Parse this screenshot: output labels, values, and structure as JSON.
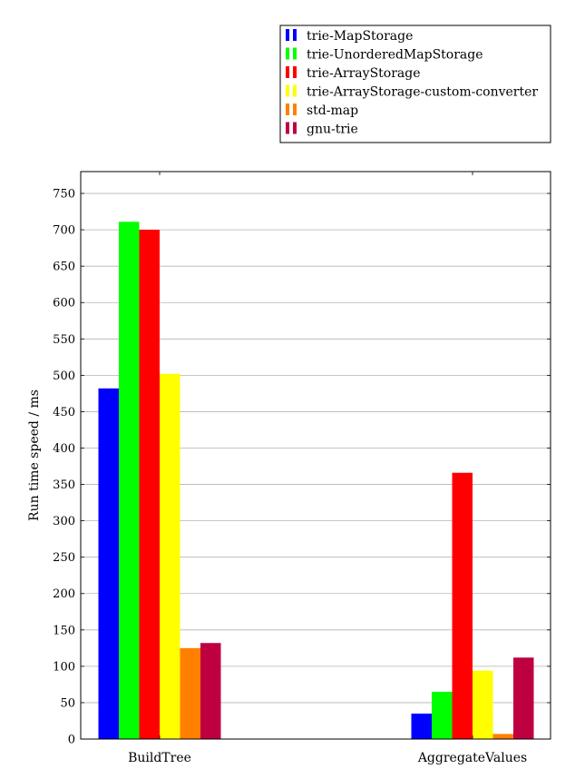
{
  "chart_data": {
    "type": "bar",
    "categories": [
      "BuildTree",
      "AggregateValues"
    ],
    "series": [
      {
        "name": "trie-MapStorage",
        "color": "#0000ff",
        "values": [
          482,
          35
        ]
      },
      {
        "name": "trie-UnorderedMapStorage",
        "color": "#00ff00",
        "values": [
          711,
          65
        ]
      },
      {
        "name": "trie-ArrayStorage",
        "color": "#ff0000",
        "values": [
          700,
          366
        ]
      },
      {
        "name": "trie-ArrayStorage-custom-converter",
        "color": "#ffff00",
        "values": [
          502,
          94
        ]
      },
      {
        "name": "std-map",
        "color": "#ff8000",
        "values": [
          125,
          7
        ]
      },
      {
        "name": "gnu-trie",
        "color": "#bf0040",
        "values": [
          132,
          112
        ]
      }
    ],
    "ylabel": "Run time speed / ms",
    "ylim": [
      0,
      780
    ],
    "yticks": [
      0,
      50,
      100,
      150,
      200,
      250,
      300,
      350,
      400,
      450,
      500,
      550,
      600,
      650,
      700,
      750
    ],
    "grid": "horizontal",
    "legend_position": "top-right, above plot"
  }
}
